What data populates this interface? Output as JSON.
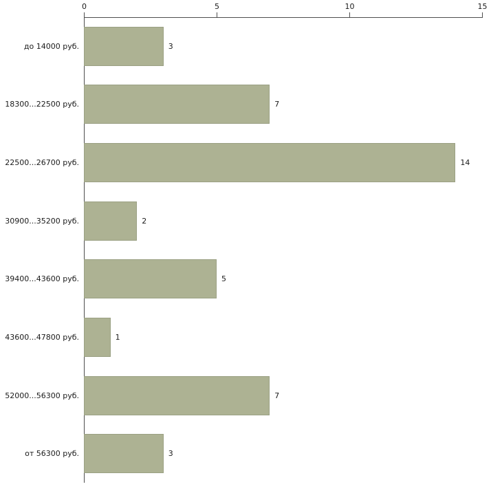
{
  "chart_data": {
    "type": "bar",
    "orientation": "horizontal",
    "title": "",
    "xlabel": "",
    "ylabel": "",
    "categories": [
      "до 14000 руб.",
      "18300...22500 руб.",
      "22500...26700 руб.",
      "30900...35200 руб.",
      "39400...43600 руб.",
      "43600...47800 руб.",
      "52000...56300 руб.",
      "от 56300 руб."
    ],
    "values": [
      3,
      7,
      14,
      2,
      5,
      1,
      7,
      3
    ],
    "xlim": [
      0,
      15
    ],
    "x_ticks": [
      0,
      5,
      10,
      15
    ],
    "x_axis_position": "top",
    "grid": false,
    "legend": "none",
    "bar_color": "#adb293",
    "bar_border_color": "#9aa083",
    "axis_color": "#4d4d4d",
    "text_color": "#1a1a1a",
    "background_color": "#ffffff"
  }
}
